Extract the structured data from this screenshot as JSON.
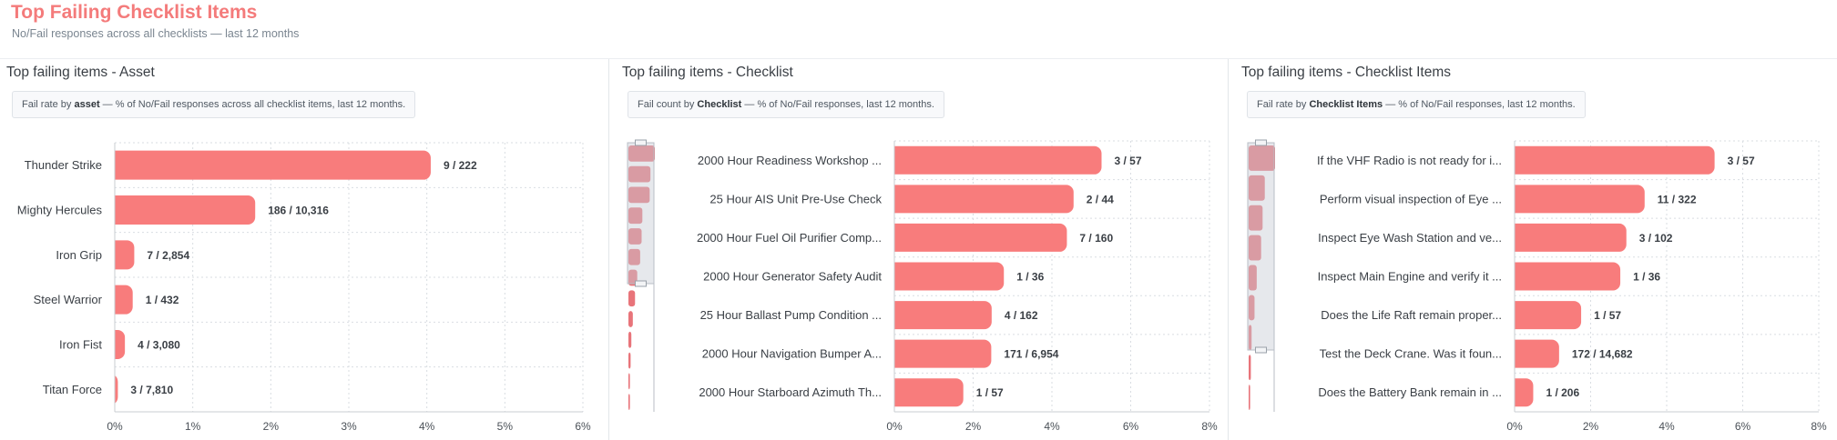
{
  "header": {
    "title": "Top Failing Checklist Items",
    "subtitle": "No/Fail responses across all checklists — last 12 months"
  },
  "colors": {
    "bar": "#f87c7c",
    "navigator_bar": "#e8747a",
    "grid": "#d9dde2",
    "axis": "#c8ccd2"
  },
  "panels": [
    {
      "title": "Top failing items - Asset",
      "note": {
        "prefix": "Fail rate by ",
        "bold": "asset",
        "suffix": " — % of No/Fail responses across all checklist items, last 12 months."
      }
    },
    {
      "title": "Top failing items - Checklist",
      "note": {
        "prefix": "Fail count by ",
        "bold": "Checklist",
        "suffix": " — % of No/Fail responses, last 12 months."
      }
    },
    {
      "title": "Top failing items - Checklist Items",
      "note": {
        "prefix": "Fail rate by ",
        "bold": "Checklist Items",
        "suffix": " — % of No/Fail responses, last 12 months."
      }
    }
  ],
  "chart_data": [
    {
      "type": "bar",
      "orientation": "horizontal",
      "categories": [
        "Thunder Strike",
        "Mighty Hercules",
        "Iron Grip",
        "Steel Warrior",
        "Iron Fist",
        "Titan Force"
      ],
      "values": [
        4.05,
        1.8,
        0.25,
        0.23,
        0.13,
        0.04
      ],
      "data_labels": [
        "9 / 222",
        "186 / 10,316",
        "7 / 2,854",
        "1 / 432",
        "4 / 3,080",
        "3 / 7,810"
      ],
      "xlim": [
        0,
        6
      ],
      "xticks": [
        0,
        1,
        2,
        3,
        4,
        5,
        6
      ],
      "xtick_labels": [
        "0%",
        "1%",
        "2%",
        "3%",
        "4%",
        "5%",
        "6%"
      ],
      "grid": true
    },
    {
      "type": "bar",
      "orientation": "horizontal",
      "categories": [
        "2000 Hour Readiness Workshop ...",
        "25 Hour AIS Unit Pre-Use Check",
        "2000 Hour Fuel Oil Purifier Comp...",
        "2000 Hour Generator Safety Audit",
        "25 Hour Ballast Pump Condition ...",
        "2000 Hour Navigation Bumper A...",
        "2000 Hour Starboard Azimuth Th..."
      ],
      "values": [
        5.26,
        4.55,
        4.38,
        2.78,
        2.47,
        2.46,
        1.75
      ],
      "data_labels": [
        "3 / 57",
        "2 / 44",
        "7 / 160",
        "1 / 36",
        "4 / 162",
        "171 / 6,954",
        "1 / 57"
      ],
      "xlim": [
        0,
        8
      ],
      "xticks": [
        0,
        2,
        4,
        6,
        8
      ],
      "xtick_labels": [
        "0%",
        "2%",
        "4%",
        "6%",
        "8%"
      ],
      "grid": true,
      "navigator": true
    },
    {
      "type": "bar",
      "orientation": "horizontal",
      "categories": [
        "If the VHF Radio is not ready for i...",
        "Perform visual inspection of Eye ...",
        "Inspect Eye Wash Station and ve...",
        "Inspect Main Engine and verify it ...",
        "Does the Life Raft remain proper...",
        "Test the Deck Crane. Was it foun...",
        "Does the Battery Bank remain in ..."
      ],
      "values": [
        5.26,
        3.42,
        2.94,
        2.78,
        1.75,
        1.17,
        0.49
      ],
      "data_labels": [
        "3 / 57",
        "11 / 322",
        "3 / 102",
        "1 / 36",
        "1 / 57",
        "172 / 14,682",
        "1 / 206"
      ],
      "xlim": [
        0,
        8
      ],
      "xticks": [
        0,
        2,
        4,
        6,
        8
      ],
      "xtick_labels": [
        "0%",
        "2%",
        "4%",
        "6%",
        "8%"
      ],
      "grid": true,
      "navigator": true
    }
  ]
}
